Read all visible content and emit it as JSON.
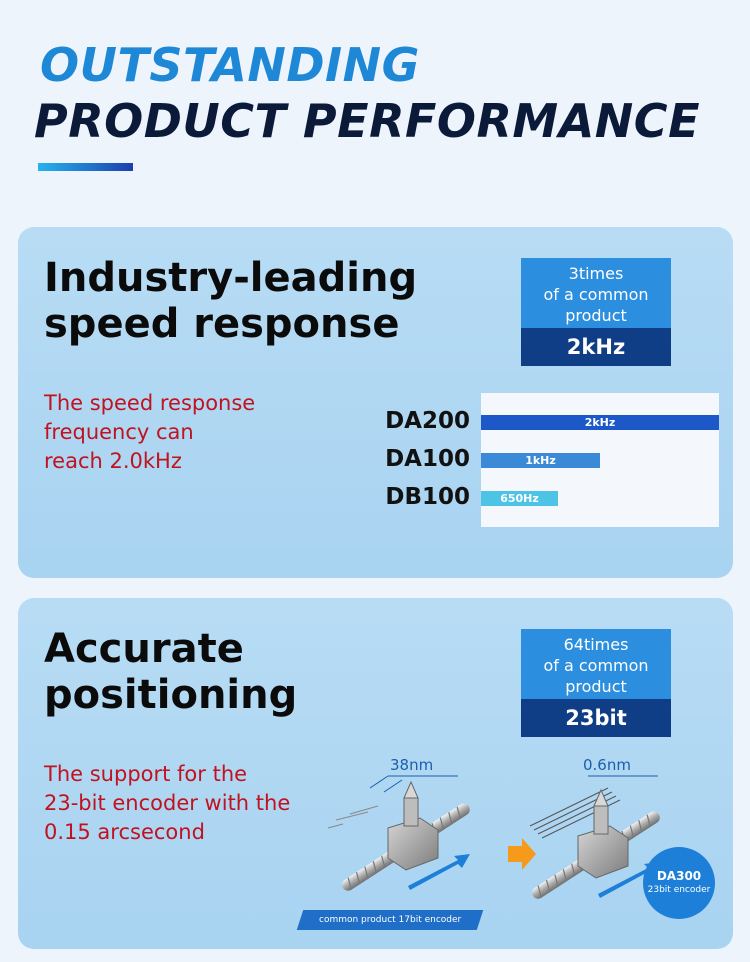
{
  "header": {
    "title_line1": "OUTSTANDING",
    "title_line2": "PRODUCT PERFORMANCE"
  },
  "speed": {
    "heading_line1": "Industry-leading",
    "heading_line2": "speed response",
    "desc_line1": "The speed response",
    "desc_line2": "frequency can",
    "desc_line3": "reach 2.0kHz",
    "badge": {
      "line1": "3times",
      "line2": "of a common",
      "line3": "product",
      "value": "2kHz"
    }
  },
  "chart_data": {
    "type": "bar",
    "orientation": "horizontal",
    "categories": [
      "DA200",
      "DA100",
      "DB100"
    ],
    "values": [
      2000,
      1000,
      650
    ],
    "value_labels": [
      "2kHz",
      "1kHz",
      "650Hz"
    ],
    "unit": "Hz",
    "xlim": [
      0,
      2000
    ],
    "grid": false,
    "colors": [
      "#1c58c8",
      "#3b8ad8",
      "#4dc3e6"
    ]
  },
  "positioning": {
    "heading_line1": "Accurate",
    "heading_line2": "positioning",
    "desc_line1": "The support for the",
    "desc_line2": "23-bit encoder with the",
    "desc_line3": "0.15 arcsecond",
    "badge": {
      "line1": "64times",
      "line2": "of a common",
      "line3": "product",
      "value": "23bit"
    },
    "left_dim": "38nm",
    "right_dim": "0.6nm",
    "caption": "common product 17bit encoder",
    "da300_model": "DA300",
    "da300_sub": "23bit encoder"
  },
  "colors": {
    "accent_light": "#1e88d6",
    "accent_dark": "#0c1a3a",
    "desc_red": "#c0121f",
    "arrow_orange": "#f59a1b"
  },
  "icons": {
    "arrow": "right-arrow-icon",
    "actuator": "linear-actuator-icon"
  }
}
